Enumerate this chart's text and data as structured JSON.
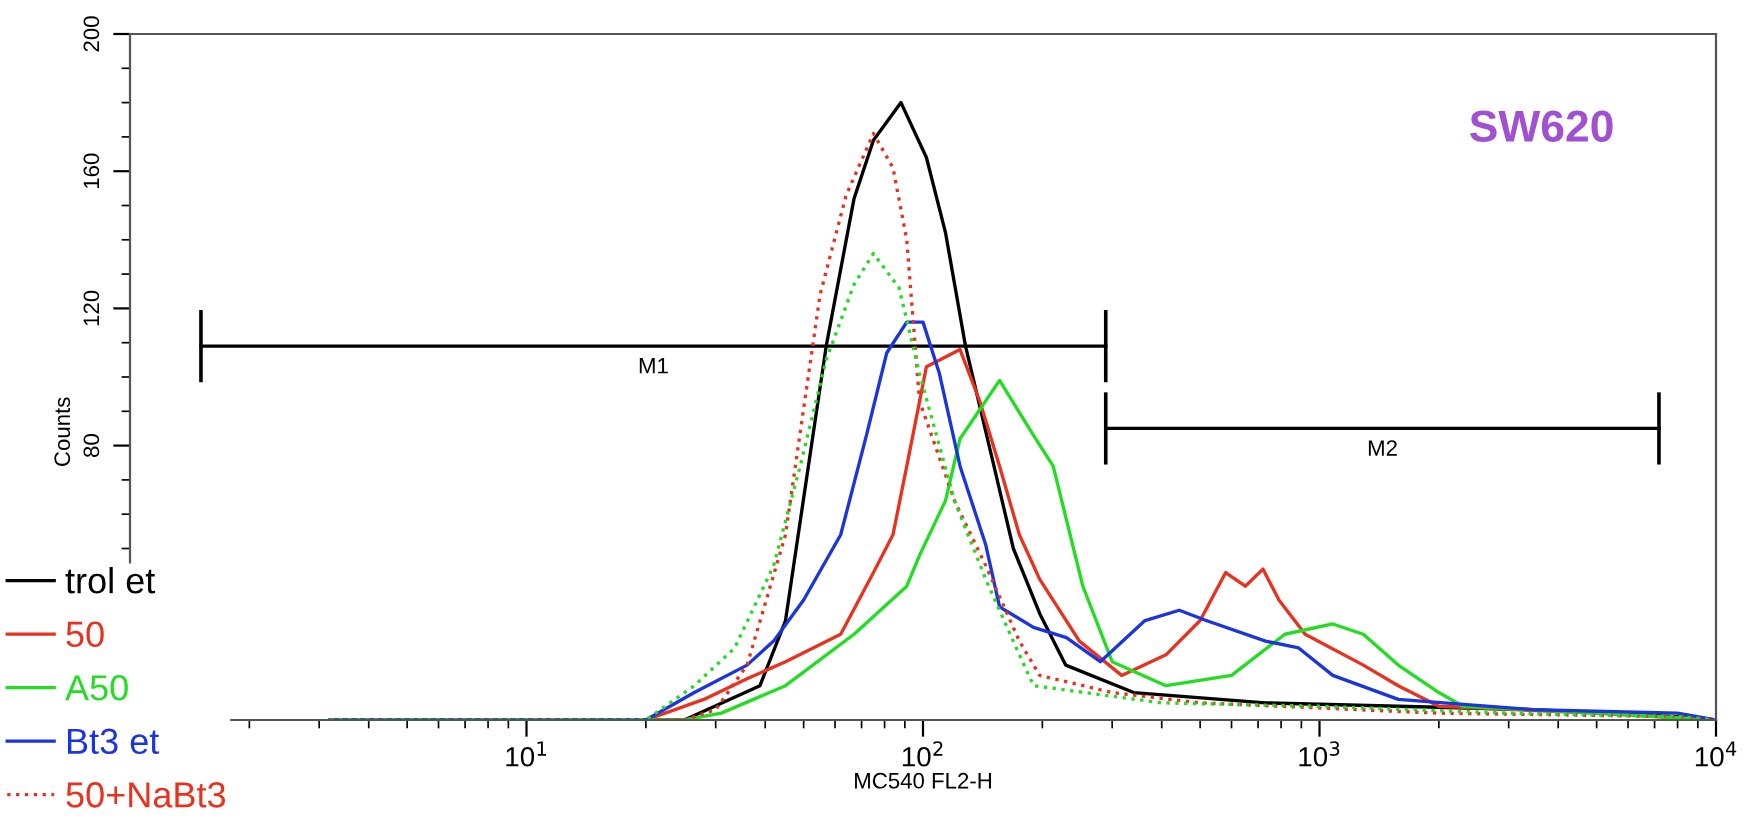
{
  "chart_data": {
    "type": "line",
    "xlabel": "MC540 FL2-H",
    "ylabel": "Counts",
    "log": "x",
    "xlim": [
      1,
      10000
    ],
    "ylim": [
      0,
      200
    ],
    "xticks": [
      {
        "value": 10,
        "label": "10$^{1}$"
      },
      {
        "value": 100,
        "label": "10$^{2}$"
      },
      {
        "value": 1000,
        "label": "10$^{3}$"
      },
      {
        "value": 10000,
        "label": "10$^{4}$"
      }
    ],
    "yticks": [
      80,
      120,
      160,
      200
    ],
    "grid": false,
    "legend": "left",
    "annotations": [
      "SW620",
      {
        "text": "M1",
        "x": 20.9,
        "y": 109
      },
      {
        "text": "M2",
        "x": 1442,
        "y": 85
      }
    ],
    "series": [
      {
        "color": "#000000",
        "line_style": "solid",
        "x": [
          1.51,
          289
        ],
        "values": [
          109,
          109
        ],
        "errors": [
          10,
          10
        ]
      },
      {
        "color": "#000000",
        "line_style": "solid",
        "x": [
          289,
          7180
        ],
        "values": [
          85,
          85
        ],
        "errors": [
          10,
          10
        ]
      },
      {
        "name": "trol et",
        "color": "#000000",
        "line_style": "solid",
        "x": [
          3.2,
          25,
          38.8,
          45,
          57,
          67,
          75,
          88,
          102,
          114,
          128,
          151,
          169,
          197,
          229,
          340,
          730,
          3460,
          8000,
          10000
        ],
        "values": [
          0,
          0,
          10,
          29,
          109,
          152,
          169,
          180,
          164,
          142,
          109,
          74,
          50,
          31,
          16,
          8,
          5,
          3,
          1,
          0
        ]
      },
      {
        "name": "50",
        "color": "#e8321e",
        "line_style": "solid",
        "x": [
          3.2,
          20,
          28,
          36,
          45,
          62,
          75,
          84,
          91,
          102,
          124,
          139,
          156,
          175,
          197,
          248,
          317,
          410,
          500,
          580,
          650,
          720,
          790,
          920,
          1290,
          1580,
          2000,
          5000,
          10000
        ],
        "values": [
          0,
          0,
          6,
          12,
          17,
          25,
          43,
          54,
          74,
          103,
          108,
          93,
          74,
          54,
          41,
          23,
          13,
          19,
          29,
          43,
          39,
          44,
          35,
          25,
          16,
          10,
          4,
          2,
          0
        ]
      },
      {
        "name": "A50",
        "color": "#22dd22",
        "line_style": "solid",
        "x": [
          3.2,
          25,
          31,
          45,
          67,
          91,
          98,
          114,
          124,
          156,
          190,
          213,
          253,
          300,
          410,
          600,
          818,
          1080,
          1290,
          1580,
          2000,
          2300,
          5000,
          10000
        ],
        "values": [
          0,
          0,
          2,
          10,
          25,
          39,
          48,
          64,
          82,
          99,
          83,
          74,
          39,
          17,
          10,
          13,
          25,
          28,
          25,
          16,
          8,
          4,
          2,
          0
        ]
      },
      {
        "name": "Bt3 et",
        "color": "#1a35e0",
        "line_style": "solid",
        "x": [
          3.2,
          20,
          26.5,
          36,
          42,
          50,
          62,
          72,
          81,
          91,
          100,
          110,
          124,
          144,
          156,
          190,
          230,
          280,
          363,
          443,
          518,
          731,
          886,
          1080,
          1580,
          3460,
          8000,
          10000
        ],
        "values": [
          0,
          0,
          8,
          16,
          23,
          35,
          54,
          83,
          107,
          116,
          116,
          101,
          74,
          51,
          33,
          27,
          24,
          17,
          29,
          32,
          29,
          23,
          21,
          13,
          6,
          3,
          2,
          0
        ]
      },
      {
        "name": "50+NaBt3",
        "color": "#e8321e",
        "line_style": "dotted",
        "x": [
          3.2,
          25,
          30,
          36,
          45,
          55,
          64,
          75,
          84,
          91,
          98,
          120,
          144,
          175,
          197,
          300,
          500,
          2000,
          8000,
          10000
        ],
        "values": [
          0,
          0,
          3,
          16,
          54,
          124,
          153,
          171,
          161,
          140,
          93,
          64,
          45,
          23,
          13,
          8,
          5,
          2,
          1,
          0
        ]
      },
      {
        "color": "#22dd22",
        "line_style": "dotted",
        "x": [
          3.2,
          20,
          26.5,
          33.5,
          42,
          49,
          57,
          67,
          75,
          87,
          98,
          120,
          144,
          175,
          190,
          400,
          1000,
          3000,
          8000,
          10000
        ],
        "values": [
          0,
          0,
          10,
          21,
          45,
          74,
          105,
          127,
          136,
          126,
          101,
          64,
          41,
          19,
          10,
          5,
          4,
          2,
          1,
          0
        ]
      }
    ]
  }
}
